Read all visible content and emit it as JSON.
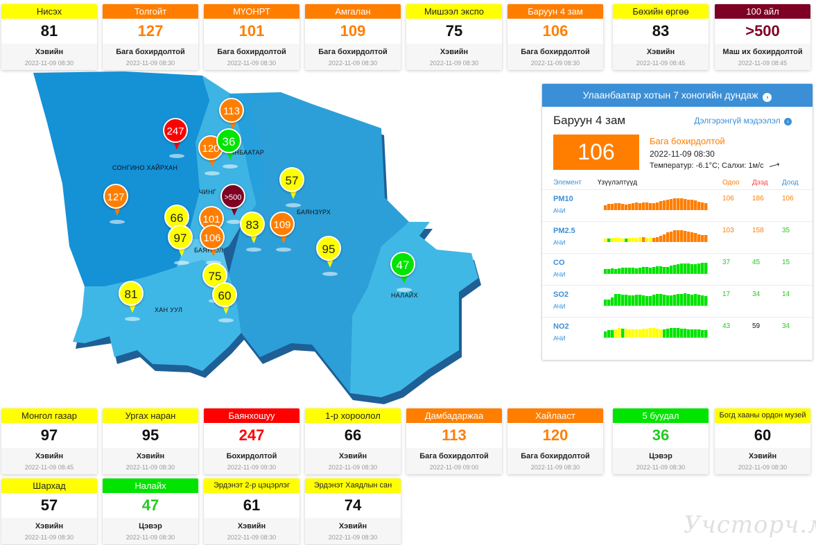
{
  "colors": {
    "good_green": "#00e400",
    "moderate_yellow": "#ffff00",
    "sensitive_orange": "#ff7e00",
    "unhealthy_red": "#ff0000",
    "hazardous_maroon": "#7e0023",
    "accent_blue": "#3b8fd6",
    "map_blue_dark": "#1a8fd6",
    "map_blue_mid": "#2ea3dd",
    "map_blue_light": "#45bde8"
  },
  "cards_top": [
    {
      "name": "Нисэх",
      "value": "81",
      "status": "Хэвийн",
      "time": "2022-11-09 08:30",
      "level": "yellow"
    },
    {
      "name": "Толгойт",
      "value": "127",
      "status": "Бага бохирдолтой",
      "time": "2022-11-09 08:30",
      "level": "orange"
    },
    {
      "name": "МҮОНРТ",
      "value": "101",
      "status": "Бага бохирдолтой",
      "time": "2022-11-09 08:30",
      "level": "orange"
    },
    {
      "name": "Амгалан",
      "value": "109",
      "status": "Бага бохирдолтой",
      "time": "2022-11-09 08:30",
      "level": "orange"
    },
    {
      "name": "Мишээл экспо",
      "value": "75",
      "status": "Хэвийн",
      "time": "2022-11-09 08:30",
      "level": "yellow"
    },
    {
      "name": "Баруун 4 зам",
      "value": "106",
      "status": "Бага бохирдолтой",
      "time": "2022-11-09 08:30",
      "level": "orange"
    },
    {
      "name": "Бөхийн өргөө",
      "value": "83",
      "status": "Хэвийн",
      "time": "2022-11-09 08:45",
      "level": "yellow"
    },
    {
      "name": "100 айл",
      "value": ">500",
      "status": "Маш их бохирдолтой",
      "time": "2022-11-09 08:45",
      "level": "maroon"
    }
  ],
  "cards_bottom": [
    {
      "name": "Монгол газар",
      "value": "97",
      "status": "Хэвийн",
      "time": "2022-11-09 08:45",
      "level": "yellow"
    },
    {
      "name": "Ургах наран",
      "value": "95",
      "status": "Хэвийн",
      "time": "2022-11-09 08:30",
      "level": "yellow"
    },
    {
      "name": "Баянхошуу",
      "value": "247",
      "status": "Бохирдолтой",
      "time": "2022-11-09 09:30",
      "level": "red"
    },
    {
      "name": "1-р хороолол",
      "value": "66",
      "status": "Хэвийн",
      "time": "2022-11-09 08:30",
      "level": "yellow"
    },
    {
      "name": "Дамбадаржаа",
      "value": "113",
      "status": "Бага бохирдолтой",
      "time": "2022-11-09 09:00",
      "level": "orange"
    },
    {
      "name": "Хайлааст",
      "value": "120",
      "status": "Бага бохирдолтой",
      "time": "2022-11-09 08:30",
      "level": "orange"
    },
    {
      "name": "5 буудал",
      "value": "36",
      "status": "Цэвэр",
      "time": "2022-11-09 08:30",
      "level": "green"
    },
    {
      "name": "Богд хааны ордон музей",
      "value": "60",
      "status": "Хэвийн",
      "time": "2022-11-09 08:30",
      "level": "yellow"
    },
    {
      "name": "Шархад",
      "value": "57",
      "status": "Хэвийн",
      "time": "2022-11-09 08:30",
      "level": "yellow"
    },
    {
      "name": "Налайх",
      "value": "47",
      "status": "Цэвэр",
      "time": "2022-11-09 08:30",
      "level": "green"
    },
    {
      "name": "Эрдэнэт 2-р цэцэрлэг",
      "value": "61",
      "status": "Хэвийн",
      "time": "2022-11-09 08:30",
      "level": "yellow"
    },
    {
      "name": "Эрдэнэт Хаядлын сан",
      "value": "74",
      "status": "Хэвийн",
      "time": "2022-11-09 08:30",
      "level": "yellow"
    }
  ],
  "map": {
    "districts": [
      {
        "label": "СОНГИНО ХАЙРХАН"
      },
      {
        "label": "ЧИНГ"
      },
      {
        "label": "ЫНБААТАР"
      },
      {
        "label": "БАЯНЗҮРХ"
      },
      {
        "label": "БАЯН    ОЛ"
      },
      {
        "label": "ХАН УУЛ"
      },
      {
        "label": "НАЛАЙХ"
      }
    ],
    "markers": [
      {
        "value": "113",
        "level": "orange"
      },
      {
        "value": "247",
        "level": "red"
      },
      {
        "value": "120",
        "level": "orange"
      },
      {
        "value": "36",
        "level": "green"
      },
      {
        "value": "57",
        "level": "yellow"
      },
      {
        "value": "127",
        "level": "orange"
      },
      {
        "value": ">500",
        "level": "maroon"
      },
      {
        "value": "66",
        "level": "yellow"
      },
      {
        "value": "101",
        "level": "orange"
      },
      {
        "value": "97",
        "level": "yellow"
      },
      {
        "value": "106",
        "level": "orange"
      },
      {
        "value": "83",
        "level": "yellow"
      },
      {
        "value": "109",
        "level": "orange"
      },
      {
        "value": "95",
        "level": "yellow"
      },
      {
        "value": "47",
        "level": "green"
      },
      {
        "value": "75",
        "level": "yellow"
      },
      {
        "value": "81",
        "level": "yellow"
      },
      {
        "value": "60",
        "level": "yellow"
      }
    ]
  },
  "panel": {
    "header": "Улаанбаатар хотын 7 хоногийн дундаж",
    "header_icon": "chevron-right-circle-icon",
    "station": "Баруун 4 зам",
    "more_link": "Дэлгэрэнгүй мэдээлэл",
    "aqi": "106",
    "status": "Бага бохирдолтой",
    "time": "2022-11-09 08:30",
    "weather": "Температур: -6.1°C; Салхи: 1м/с",
    "wind_icon": "wind-arrow-icon",
    "columns": {
      "element": "Элемент",
      "indicator": "Үзүүлэлтүүд",
      "now": "Одоо",
      "max": "Дээд",
      "min": "Доод"
    },
    "pollutants": [
      {
        "name": "PM10",
        "unit": "АЧИ",
        "now": "106",
        "max": "186",
        "min": "106",
        "now_color": "orange",
        "max_color": "orange",
        "min_color": "orange",
        "bars": [
          0.35,
          0.45,
          0.45,
          0.5,
          0.5,
          0.45,
          0.4,
          0.45,
          0.5,
          0.55,
          0.5,
          0.55,
          0.55,
          0.5,
          0.5,
          0.55,
          0.65,
          0.7,
          0.75,
          0.8,
          0.85,
          0.85,
          0.85,
          0.8,
          0.75,
          0.75,
          0.7,
          0.6,
          0.55,
          0.5
        ],
        "bar_levels": [
          "o",
          "o",
          "o",
          "o",
          "o",
          "o",
          "o",
          "o",
          "o",
          "o",
          "o",
          "o",
          "o",
          "o",
          "o",
          "o",
          "o",
          "o",
          "o",
          "o",
          "o",
          "o",
          "o",
          "o",
          "o",
          "o",
          "o",
          "o",
          "o",
          "o"
        ]
      },
      {
        "name": "PM2.5",
        "unit": "АЧИ",
        "now": "103",
        "max": "158",
        "min": "35",
        "now_color": "orange",
        "max_color": "orange",
        "min_color": "green",
        "bars": [
          0.25,
          0.25,
          0.3,
          0.3,
          0.3,
          0.25,
          0.25,
          0.3,
          0.3,
          0.3,
          0.35,
          0.35,
          0.3,
          0.3,
          0.3,
          0.35,
          0.45,
          0.55,
          0.7,
          0.75,
          0.85,
          0.85,
          0.85,
          0.8,
          0.75,
          0.7,
          0.65,
          0.55,
          0.5,
          0.5
        ],
        "bar_levels": [
          "y",
          "g",
          "y",
          "y",
          "y",
          "y",
          "g",
          "y",
          "y",
          "y",
          "y",
          "o",
          "y",
          "y",
          "o",
          "o",
          "o",
          "o",
          "o",
          "o",
          "o",
          "o",
          "o",
          "o",
          "o",
          "o",
          "o",
          "o",
          "o",
          "o"
        ]
      },
      {
        "name": "CO",
        "unit": "АЧИ",
        "now": "37",
        "max": "45",
        "min": "15",
        "now_color": "green",
        "max_color": "green",
        "min_color": "green",
        "bars": [
          0.35,
          0.35,
          0.4,
          0.35,
          0.4,
          0.45,
          0.45,
          0.45,
          0.45,
          0.4,
          0.45,
          0.5,
          0.5,
          0.45,
          0.5,
          0.55,
          0.55,
          0.5,
          0.5,
          0.6,
          0.65,
          0.7,
          0.75,
          0.75,
          0.75,
          0.7,
          0.7,
          0.75,
          0.8,
          0.8
        ],
        "bar_levels": [
          "g",
          "g",
          "g",
          "g",
          "g",
          "g",
          "g",
          "g",
          "g",
          "g",
          "g",
          "g",
          "g",
          "g",
          "g",
          "g",
          "g",
          "g",
          "g",
          "g",
          "g",
          "g",
          "g",
          "g",
          "g",
          "g",
          "g",
          "g",
          "g",
          "g"
        ]
      },
      {
        "name": "SO2",
        "unit": "АЧИ",
        "now": "17",
        "max": "34",
        "min": "14",
        "now_color": "green",
        "max_color": "green",
        "min_color": "green",
        "bars": [
          0.45,
          0.45,
          0.6,
          0.85,
          0.85,
          0.8,
          0.8,
          0.75,
          0.75,
          0.8,
          0.8,
          0.75,
          0.7,
          0.7,
          0.8,
          0.85,
          0.85,
          0.8,
          0.75,
          0.75,
          0.8,
          0.85,
          0.85,
          0.9,
          0.85,
          0.8,
          0.85,
          0.8,
          0.75,
          0.7
        ],
        "bar_levels": [
          "g",
          "g",
          "g",
          "g",
          "g",
          "g",
          "g",
          "g",
          "g",
          "g",
          "g",
          "g",
          "g",
          "g",
          "g",
          "g",
          "g",
          "g",
          "g",
          "g",
          "g",
          "g",
          "g",
          "g",
          "g",
          "g",
          "g",
          "g",
          "g",
          "g"
        ]
      },
      {
        "name": "NO2",
        "unit": "АЧИ",
        "now": "43",
        "max": "59",
        "min": "34",
        "now_color": "green",
        "max_color": "black",
        "min_color": "green",
        "bars": [
          0.45,
          0.55,
          0.55,
          0.6,
          0.7,
          0.65,
          0.65,
          0.6,
          0.6,
          0.6,
          0.6,
          0.65,
          0.65,
          0.7,
          0.7,
          0.65,
          0.6,
          0.6,
          0.65,
          0.7,
          0.7,
          0.7,
          0.65,
          0.65,
          0.6,
          0.6,
          0.6,
          0.6,
          0.55,
          0.55
        ],
        "bar_levels": [
          "g",
          "g",
          "g",
          "y",
          "y",
          "g",
          "y",
          "y",
          "y",
          "y",
          "y",
          "y",
          "y",
          "y",
          "y",
          "y",
          "y",
          "g",
          "g",
          "g",
          "g",
          "g",
          "g",
          "g",
          "g",
          "g",
          "g",
          "g",
          "g",
          "g"
        ]
      }
    ]
  },
  "watermark": "Учсторч.мн"
}
